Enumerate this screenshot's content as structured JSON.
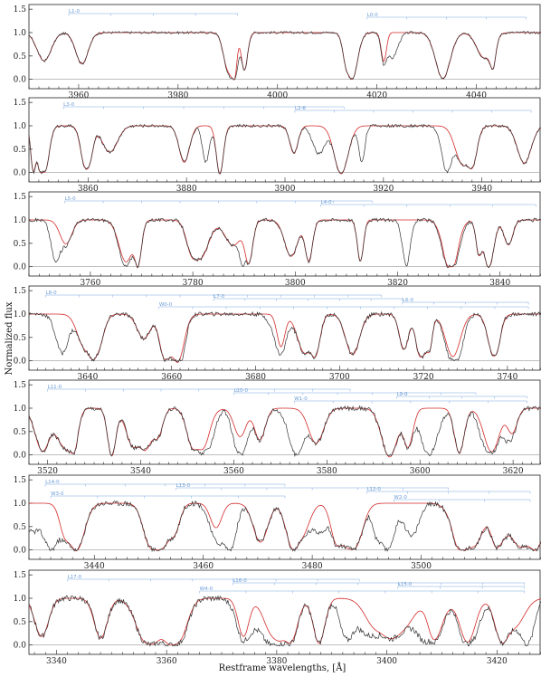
{
  "figure": {
    "xlabel": "Restframe wavelengths, [Å]",
    "ylabel": "Normalized flux"
  },
  "style": {
    "data_color": "#333333",
    "model_color": "#d42a2a",
    "lines_color": "#7aa8e0",
    "zero_line_color": "#999999"
  },
  "chart_data": [
    {
      "type": "line",
      "xlim": [
        3950,
        4053
      ],
      "ylim": [
        -0.2,
        1.6
      ],
      "yticks": [
        0.0,
        0.5,
        1.0,
        1.5
      ],
      "xticks": [
        3960,
        3980,
        4000,
        4020,
        4040
      ],
      "series": [
        {
          "values": "spectrum"
        },
        {
          "values": "fit"
        }
      ],
      "line_series": [
        {
          "label": "L1-0",
          "x_start": 3958,
          "x_end": 3992
        },
        {
          "label": "L0-0",
          "x_start": 4018,
          "x_end": 4050
        }
      ]
    },
    {
      "type": "line",
      "xlim": [
        3848,
        3952
      ],
      "ylim": [
        -0.2,
        1.6
      ],
      "yticks": [
        0.0,
        0.5,
        1.0,
        1.5
      ],
      "xticks": [
        3860,
        3880,
        3900,
        3920,
        3940
      ],
      "series": [
        {
          "values": "spectrum"
        },
        {
          "values": "fit"
        }
      ],
      "line_series": [
        {
          "label": "L3-0",
          "x_start": 3855,
          "x_end": 3912
        },
        {
          "label": "L2-0",
          "x_start": 3902,
          "x_end": 3950
        }
      ]
    },
    {
      "type": "line",
      "xlim": [
        3748,
        3848
      ],
      "ylim": [
        -0.2,
        1.6
      ],
      "yticks": [
        0.0,
        0.5,
        1.0,
        1.5
      ],
      "xticks": [
        3760,
        3780,
        3800,
        3820,
        3840
      ],
      "series": [
        {
          "values": "spectrum"
        },
        {
          "values": "fit"
        }
      ],
      "line_series": [
        {
          "label": "L5-0",
          "x_start": 3755,
          "x_end": 3815
        },
        {
          "label": "L4-0",
          "x_start": 3805,
          "x_end": 3847
        }
      ]
    },
    {
      "type": "line",
      "xlim": [
        3626,
        3748
      ],
      "ylim": [
        -0.2,
        1.6
      ],
      "yticks": [
        0.0,
        0.5,
        1.0,
        1.5
      ],
      "xticks": [
        3640,
        3660,
        3680,
        3700,
        3720,
        3740
      ],
      "series": [
        {
          "values": "spectrum"
        },
        {
          "values": "fit"
        }
      ],
      "line_series": [
        {
          "label": "L8-0",
          "x_start": 3630,
          "x_end": 3710
        },
        {
          "label": "L7-0",
          "x_start": 3670,
          "x_end": 3715
        },
        {
          "label": "L6-0",
          "x_start": 3715,
          "x_end": 3745
        },
        {
          "label": "W0-0",
          "x_start": 3657,
          "x_end": 3745
        }
      ]
    },
    {
      "type": "line",
      "xlim": [
        3516,
        3626
      ],
      "ylim": [
        -0.2,
        1.6
      ],
      "yticks": [
        0.0,
        0.5,
        1.0,
        1.5
      ],
      "xticks": [
        3520,
        3540,
        3560,
        3580,
        3600,
        3620
      ],
      "series": [
        {
          "values": "spectrum"
        },
        {
          "values": "fit"
        }
      ],
      "line_series": [
        {
          "label": "L11-0",
          "x_start": 3520,
          "x_end": 3585
        },
        {
          "label": "L10-0",
          "x_start": 3560,
          "x_end": 3612
        },
        {
          "label": "L9-0",
          "x_start": 3595,
          "x_end": 3623
        },
        {
          "label": "W1-0",
          "x_start": 3573,
          "x_end": 3623
        }
      ]
    },
    {
      "type": "line",
      "xlim": [
        3428,
        3522
      ],
      "ylim": [
        -0.2,
        1.6
      ],
      "yticks": [
        0.0,
        0.5,
        1.0,
        1.5
      ],
      "xticks": [
        3440,
        3460,
        3480,
        3500
      ],
      "series": [
        {
          "values": "spectrum"
        },
        {
          "values": "fit"
        }
      ],
      "line_series": [
        {
          "label": "L14-0",
          "x_start": 3431,
          "x_end": 3475
        },
        {
          "label": "L13-0",
          "x_start": 3455,
          "x_end": 3505
        },
        {
          "label": "L12-0",
          "x_start": 3490,
          "x_end": 3520
        },
        {
          "label": "W3-0",
          "x_start": 3432,
          "x_end": 3475
        },
        {
          "label": "W2-0",
          "x_start": 3495,
          "x_end": 3520
        }
      ]
    },
    {
      "type": "line",
      "xlim": [
        3335,
        3428
      ],
      "ylim": [
        -0.2,
        1.6
      ],
      "yticks": [
        0.0,
        0.5,
        1.0,
        1.5
      ],
      "xticks": [
        3340,
        3360,
        3380,
        3400,
        3420
      ],
      "series": [
        {
          "values": "spectrum"
        },
        {
          "values": "fit"
        }
      ],
      "line_series": [
        {
          "label": "L17-0",
          "x_start": 3342,
          "x_end": 3395
        },
        {
          "label": "L16-0",
          "x_start": 3372,
          "x_end": 3425
        },
        {
          "label": "L15-0",
          "x_start": 3402,
          "x_end": 3425
        },
        {
          "label": "W4-0",
          "x_start": 3366,
          "x_end": 3425
        }
      ]
    }
  ]
}
